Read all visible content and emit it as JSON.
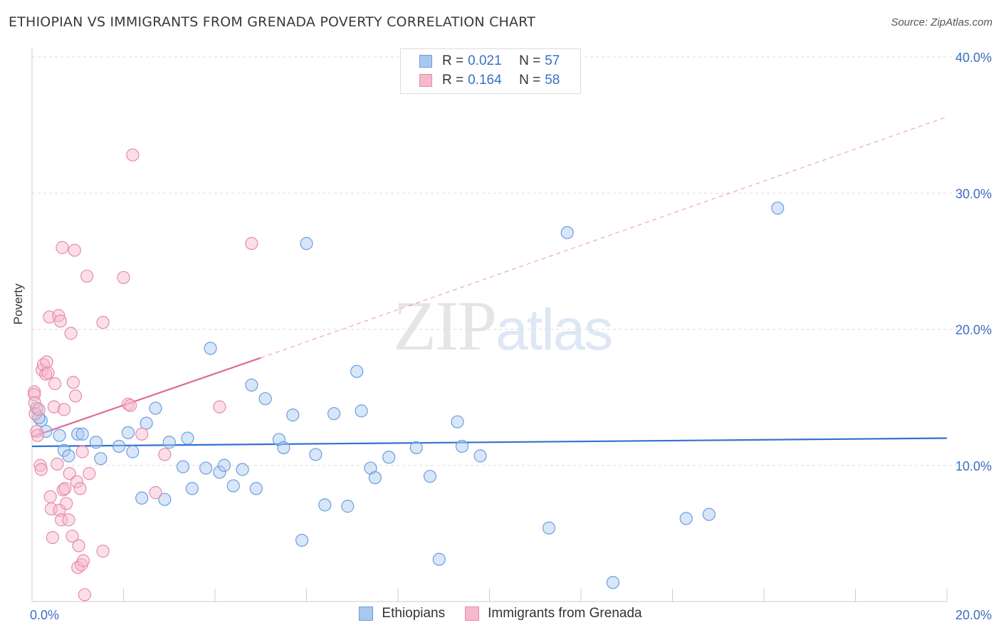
{
  "title": "ETHIOPIAN VS IMMIGRANTS FROM GRENADA POVERTY CORRELATION CHART",
  "source": "Source: ZipAtlas.com",
  "watermark": {
    "zip": "ZIP",
    "atlas": "atlas"
  },
  "legend_top": [
    {
      "r_label": "R =",
      "r_value": "0.021",
      "n_label": "N =",
      "n_value": "57"
    },
    {
      "r_label": "R =",
      "r_value": "0.164",
      "n_label": "N =",
      "n_value": "58"
    }
  ],
  "legend_bottom": [
    "Ethiopians",
    "Immigrants from Grenada"
  ],
  "colors": {
    "blue_fill": "#a9c8f0",
    "blue_stroke": "#6a9ee0",
    "blue_line": "#2f73d0",
    "pink_fill": "#f6b8cc",
    "pink_stroke": "#e88aa8",
    "pink_line": "#e06a95",
    "tick_label": "#3a6fc4",
    "grid": "#dddddd",
    "axis": "#cccccc"
  },
  "chart_data": {
    "type": "scatter",
    "title": "ETHIOPIAN VS IMMIGRANTS FROM GRENADA POVERTY CORRELATION CHART",
    "xlabel": "",
    "ylabel": "Poverty",
    "xlim": [
      0,
      20
    ],
    "ylim": [
      0,
      40
    ],
    "x_tick_labels": [
      {
        "value": 0,
        "label": "0.0%"
      },
      {
        "value": 20,
        "label": "20.0%"
      }
    ],
    "y_tick_labels": [
      {
        "value": 10,
        "label": "10.0%"
      },
      {
        "value": 20,
        "label": "20.0%"
      },
      {
        "value": 30,
        "label": "30.0%"
      },
      {
        "value": 40,
        "label": "40.0%"
      }
    ],
    "grid": true,
    "legend": "top-center",
    "series": [
      {
        "name": "Ethiopians",
        "R": 0.021,
        "N": 57,
        "trend": {
          "x0": 0,
          "y0": 11.4,
          "x1": 20,
          "y1": 12.0
        },
        "points": [
          [
            0.1,
            14.2
          ],
          [
            0.2,
            13.3
          ],
          [
            0.3,
            12.5
          ],
          [
            0.6,
            12.2
          ],
          [
            0.7,
            11.1
          ],
          [
            0.8,
            10.7
          ],
          [
            1.0,
            12.3
          ],
          [
            1.1,
            12.3
          ],
          [
            1.4,
            11.7
          ],
          [
            1.5,
            10.5
          ],
          [
            1.9,
            11.4
          ],
          [
            2.1,
            12.4
          ],
          [
            2.2,
            11.0
          ],
          [
            2.4,
            7.6
          ],
          [
            2.5,
            13.1
          ],
          [
            2.7,
            14.2
          ],
          [
            2.9,
            7.5
          ],
          [
            3.0,
            11.7
          ],
          [
            3.3,
            9.9
          ],
          [
            3.4,
            12.0
          ],
          [
            3.5,
            8.3
          ],
          [
            3.8,
            9.8
          ],
          [
            3.9,
            18.6
          ],
          [
            4.1,
            9.5
          ],
          [
            4.2,
            10.0
          ],
          [
            4.4,
            8.5
          ],
          [
            4.6,
            9.7
          ],
          [
            4.8,
            15.9
          ],
          [
            4.9,
            8.3
          ],
          [
            5.1,
            14.9
          ],
          [
            5.4,
            11.9
          ],
          [
            5.5,
            11.3
          ],
          [
            5.7,
            13.7
          ],
          [
            5.9,
            4.5
          ],
          [
            6.0,
            26.3
          ],
          [
            6.2,
            10.8
          ],
          [
            6.4,
            7.1
          ],
          [
            6.6,
            13.8
          ],
          [
            6.9,
            7.0
          ],
          [
            7.1,
            16.9
          ],
          [
            7.2,
            14.0
          ],
          [
            7.4,
            9.8
          ],
          [
            7.5,
            9.1
          ],
          [
            7.8,
            10.6
          ],
          [
            8.4,
            11.3
          ],
          [
            8.7,
            9.2
          ],
          [
            8.9,
            3.1
          ],
          [
            9.3,
            13.2
          ],
          [
            9.4,
            11.4
          ],
          [
            9.8,
            10.7
          ],
          [
            11.3,
            5.4
          ],
          [
            11.7,
            27.1
          ],
          [
            12.7,
            1.4
          ],
          [
            14.3,
            6.1
          ],
          [
            14.8,
            6.4
          ],
          [
            16.3,
            28.9
          ],
          [
            0.15,
            13.5
          ]
        ]
      },
      {
        "name": "Immigrants from Grenada",
        "R": 0.164,
        "N": 58,
        "trend_solid": {
          "x0": 0,
          "y0": 12.1,
          "x1": 5,
          "y1": 17.9
        },
        "trend_dashed": {
          "x0": 5,
          "y0": 17.9,
          "x1": 20,
          "y1": 35.6
        },
        "points": [
          [
            0.05,
            15.4
          ],
          [
            0.05,
            15.2
          ],
          [
            0.06,
            14.6
          ],
          [
            0.07,
            13.8
          ],
          [
            0.1,
            12.5
          ],
          [
            0.12,
            12.2
          ],
          [
            0.15,
            14.1
          ],
          [
            0.18,
            10.0
          ],
          [
            0.2,
            9.7
          ],
          [
            0.22,
            17.0
          ],
          [
            0.25,
            17.4
          ],
          [
            0.3,
            16.7
          ],
          [
            0.32,
            17.6
          ],
          [
            0.35,
            16.8
          ],
          [
            0.38,
            20.9
          ],
          [
            0.4,
            7.7
          ],
          [
            0.42,
            6.8
          ],
          [
            0.45,
            4.7
          ],
          [
            0.48,
            14.3
          ],
          [
            0.5,
            16.0
          ],
          [
            0.55,
            10.1
          ],
          [
            0.58,
            21.0
          ],
          [
            0.6,
            6.7
          ],
          [
            0.62,
            20.6
          ],
          [
            0.64,
            6.0
          ],
          [
            0.66,
            26.0
          ],
          [
            0.68,
            8.2
          ],
          [
            0.7,
            14.1
          ],
          [
            0.72,
            8.3
          ],
          [
            0.75,
            7.2
          ],
          [
            0.8,
            6.0
          ],
          [
            0.82,
            9.4
          ],
          [
            0.85,
            19.7
          ],
          [
            0.88,
            4.8
          ],
          [
            0.9,
            16.1
          ],
          [
            0.93,
            25.8
          ],
          [
            0.95,
            15.1
          ],
          [
            0.98,
            8.8
          ],
          [
            1.0,
            2.5
          ],
          [
            1.02,
            4.1
          ],
          [
            1.05,
            8.3
          ],
          [
            1.08,
            2.7
          ],
          [
            1.1,
            11.0
          ],
          [
            1.12,
            3.0
          ],
          [
            1.15,
            0.5
          ],
          [
            1.2,
            23.9
          ],
          [
            1.25,
            9.4
          ],
          [
            1.55,
            3.7
          ],
          [
            1.55,
            20.5
          ],
          [
            2.0,
            23.8
          ],
          [
            2.1,
            14.5
          ],
          [
            2.15,
            14.4
          ],
          [
            2.2,
            32.8
          ],
          [
            2.4,
            12.3
          ],
          [
            2.9,
            10.8
          ],
          [
            2.7,
            8.0
          ],
          [
            4.1,
            14.3
          ],
          [
            4.8,
            26.3
          ]
        ]
      }
    ]
  }
}
